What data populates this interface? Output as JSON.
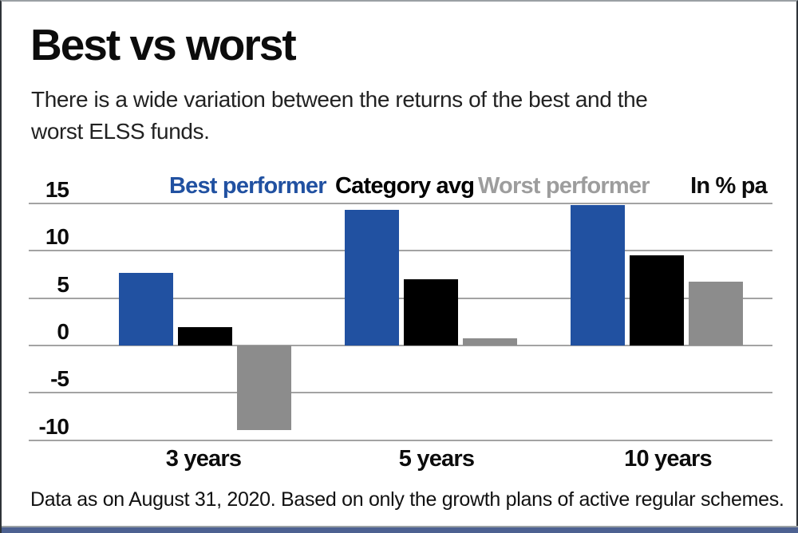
{
  "header": {
    "title": "Best vs worst",
    "subtitle_lines": [
      "There is a wide variation between the returns of the best and the",
      "worst ELSS funds."
    ]
  },
  "legend": {
    "items": [
      {
        "label": "Best performer",
        "color": "#2151a1"
      },
      {
        "label": "Category avg",
        "color": "#000000"
      },
      {
        "label": "Worst performer",
        "color": "#9d9d9d"
      }
    ],
    "unit_label": "In % pa"
  },
  "chart_data": {
    "type": "bar",
    "title": "Best vs worst",
    "categories": [
      "3 years",
      "5 years",
      "10 years"
    ],
    "series": [
      {
        "name": "Best performer",
        "color": "#2151a1",
        "values": [
          7.7,
          14.3,
          14.8
        ]
      },
      {
        "name": "Category avg",
        "color": "#000000",
        "values": [
          1.9,
          7.0,
          9.5
        ]
      },
      {
        "name": "Worst performer",
        "color": "#8c8c8c",
        "values": [
          -8.9,
          0.8,
          6.7
        ]
      }
    ],
    "unit": "% pa",
    "y_ticks": [
      15,
      10,
      5,
      0,
      -5,
      -10
    ],
    "ylim": [
      -12,
      15
    ],
    "grid": "horizontal",
    "legend_position": "top"
  },
  "footer": {
    "note": "Data as on August 31, 2020. Based on only the growth plans of active regular schemes."
  },
  "colors": {
    "best": "#2151a1",
    "category_avg": "#000000",
    "worst_bar": "#8c8c8c",
    "worst_text": "#9d9d9d",
    "gridline": "#a3a3a3",
    "bottom_strip": "#4d6191"
  }
}
